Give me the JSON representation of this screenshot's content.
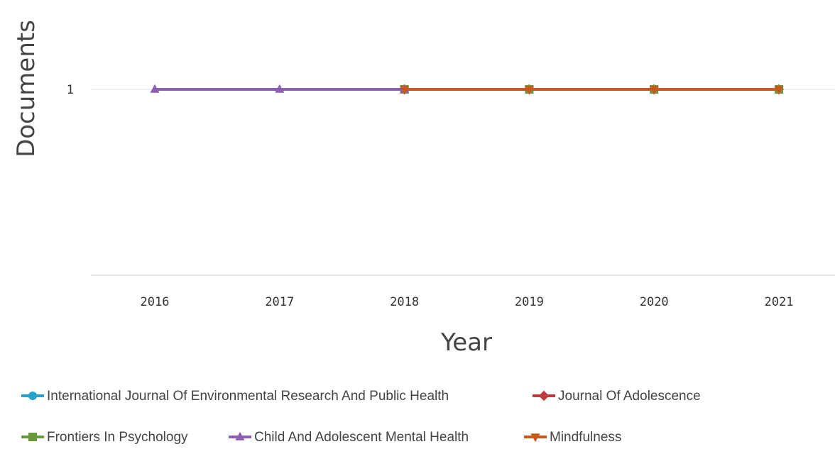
{
  "chart_data": {
    "type": "line",
    "title": "",
    "xlabel": "Year",
    "ylabel": "Documents",
    "x": [
      2016,
      2017,
      2018,
      2019,
      2020,
      2021
    ],
    "x_tick_labels": [
      "2016",
      "2017",
      "2018",
      "2019",
      "2020",
      "2021"
    ],
    "y_tick_labels": [
      "1"
    ],
    "y_ticks": [
      1
    ],
    "ylim": [
      0,
      1.5
    ],
    "grid": true,
    "legend_position": "bottom",
    "series": [
      {
        "name": "International Journal Of Environmental Research And Public Health",
        "color": "#2aa1c9",
        "marker": "circle",
        "points": [
          [
            2018,
            1
          ],
          [
            2019,
            1
          ],
          [
            2020,
            1
          ],
          [
            2021,
            1
          ]
        ]
      },
      {
        "name": "Journal Of Adolescence",
        "color": "#c0393d",
        "marker": "diamond",
        "points": [
          [
            2018,
            1
          ],
          [
            2019,
            1
          ],
          [
            2020,
            1
          ],
          [
            2021,
            1
          ]
        ]
      },
      {
        "name": "Frontiers In Psychology",
        "color": "#6a9a3c",
        "marker": "square",
        "points": [
          [
            2018,
            1
          ],
          [
            2019,
            1
          ],
          [
            2020,
            1
          ],
          [
            2021,
            1
          ]
        ]
      },
      {
        "name": "Child And Adolescent Mental Health",
        "color": "#8e5fb0",
        "marker": "triangle-up",
        "points": [
          [
            2016,
            1
          ],
          [
            2017,
            1
          ],
          [
            2018,
            1
          ]
        ]
      },
      {
        "name": "Mindfulness",
        "color": "#c9581d",
        "marker": "triangle-down",
        "points": [
          [
            2018,
            1
          ],
          [
            2019,
            1
          ],
          [
            2020,
            1
          ],
          [
            2021,
            1
          ]
        ]
      }
    ]
  }
}
